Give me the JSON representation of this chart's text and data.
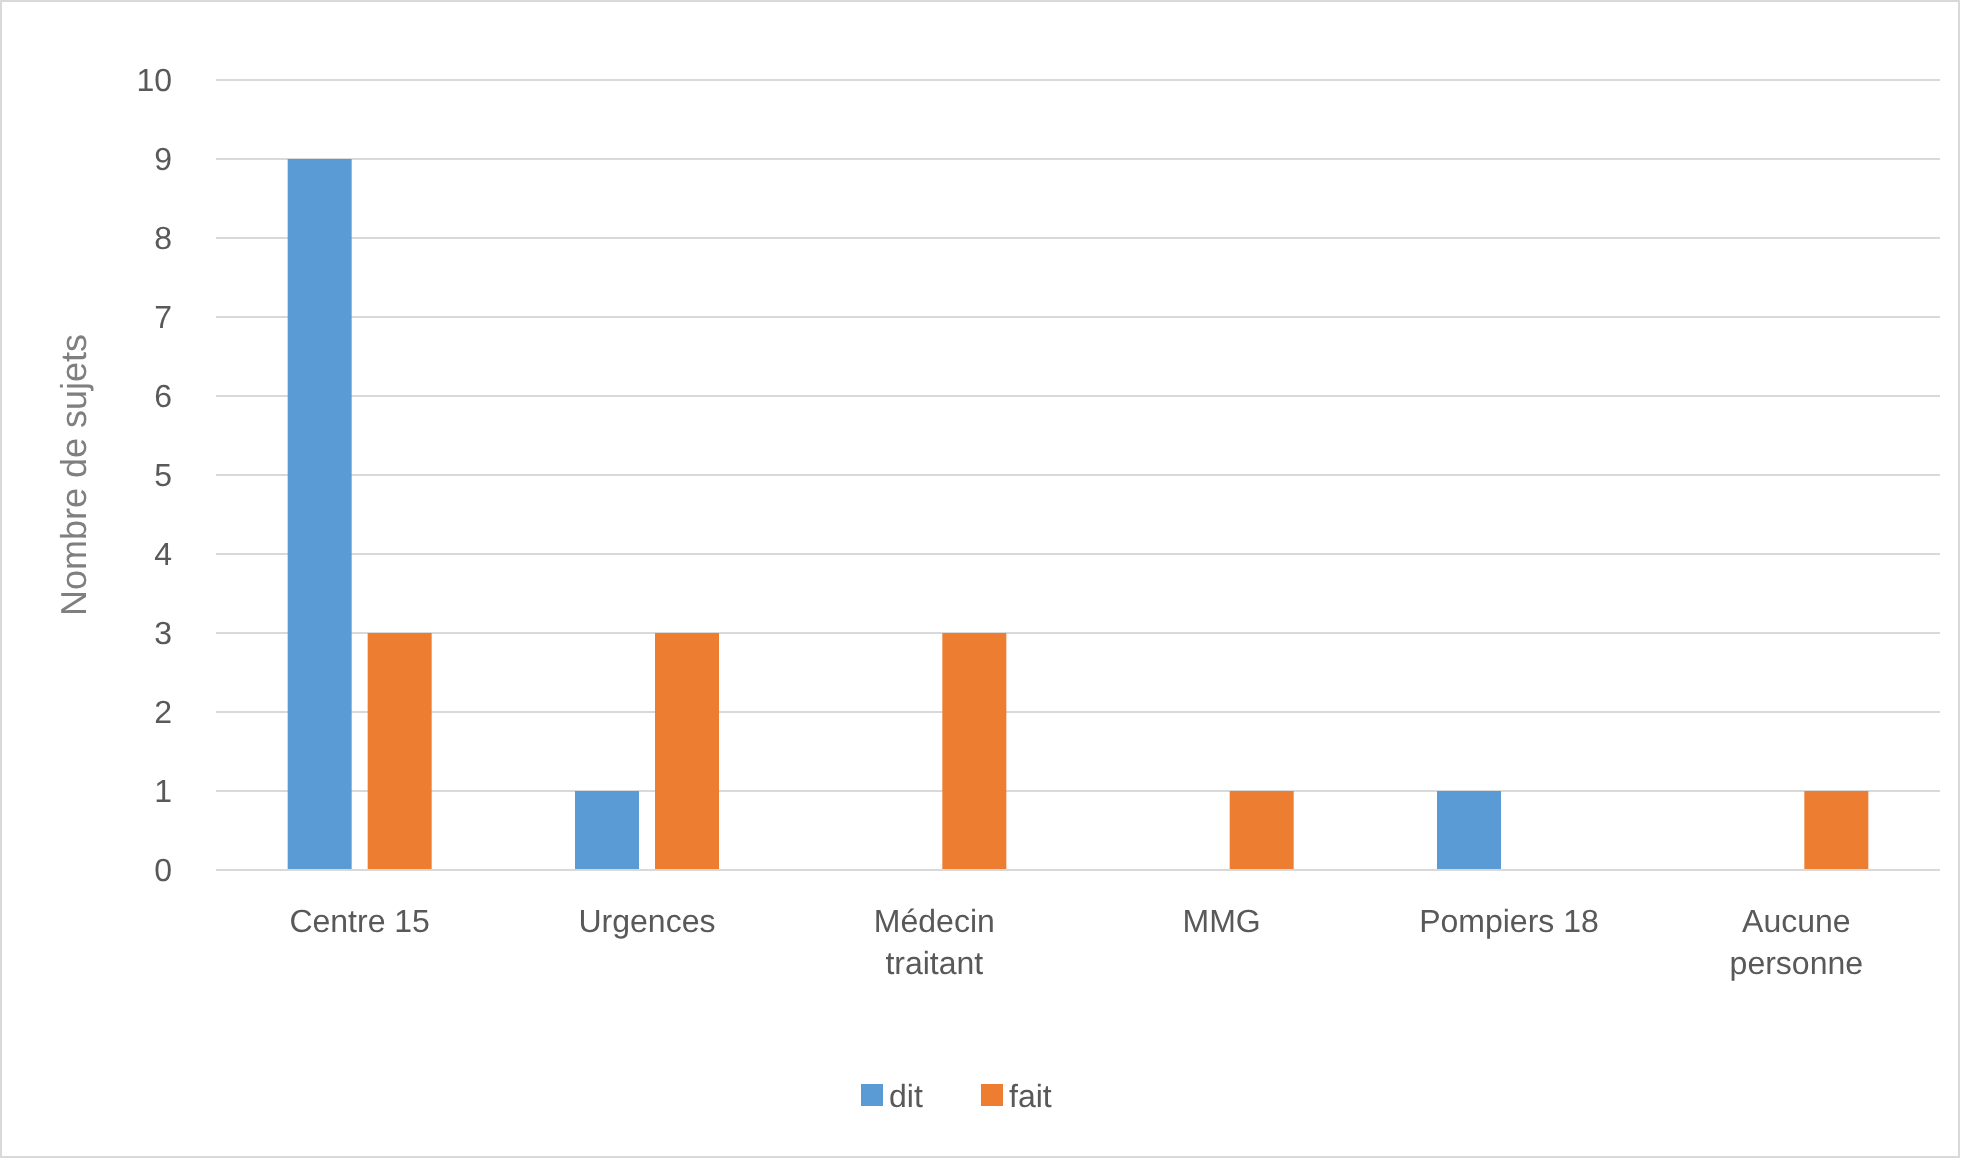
{
  "chart_data": {
    "type": "bar",
    "ylabel": "Nombre de sujets",
    "categories": [
      "Centre 15",
      "Urgences",
      "Médecin traitant",
      "MMG",
      "Pompiers 18",
      "Aucune personne"
    ],
    "series": [
      {
        "name": "dit",
        "color": "#5b9bd5",
        "values": [
          9,
          1,
          0,
          0,
          1,
          0
        ]
      },
      {
        "name": "fait",
        "color": "#ed7d31",
        "values": [
          3,
          3,
          3,
          1,
          0,
          1
        ]
      }
    ],
    "ylim": [
      0,
      10
    ],
    "yticks": [
      0,
      1,
      2,
      3,
      4,
      5,
      6,
      7,
      8,
      9,
      10
    ],
    "grid": "y",
    "legend": "bottom"
  }
}
